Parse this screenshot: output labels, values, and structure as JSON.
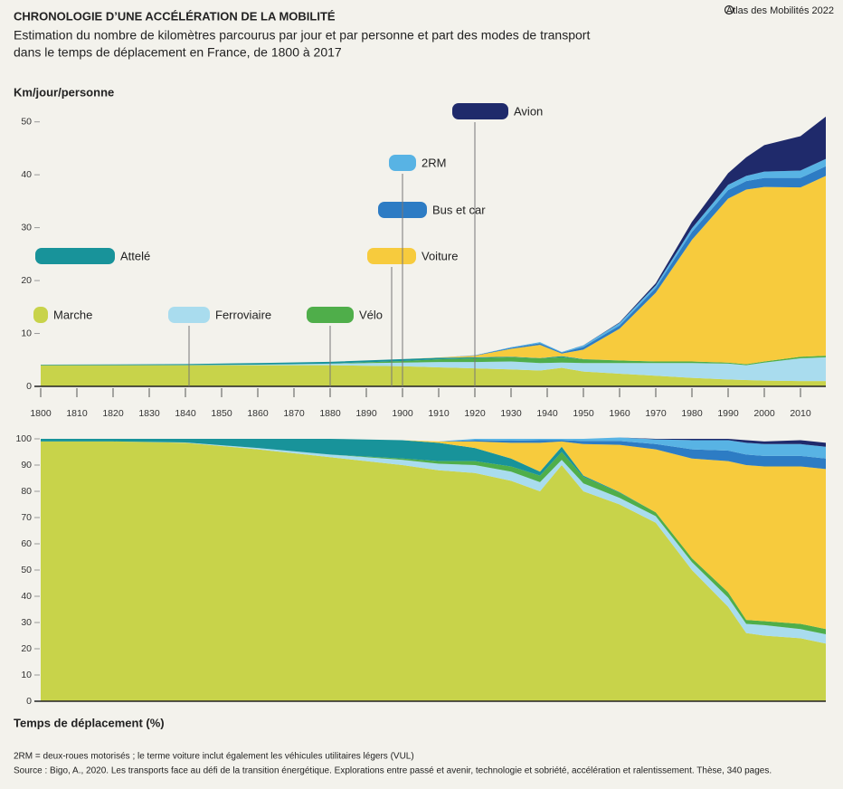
{
  "chart_data": [
    {
      "type": "stacked-area",
      "title": "CHRONOLOGIE D’UNE ACCÉLÉRATION DE LA MOBILITÉ",
      "subtitle": [
        "Estimation du nombre de kilomètres parcourus par jour et par personne et part des modes de transport",
        "dans le temps de déplacement en France, de 1800 à 2017"
      ],
      "credit": "Atlas des Mobilités 2022",
      "ylabel": "Km/jour/personne",
      "notes": [
        "2RM = deux-roues motorisés ; le terme voiture inclut également les véhicules utilitaires légers (VUL)",
        "Source : Bigo, A., 2020. Les transports face au défi de la transition énergétique. Explorations entre passé et avenir, technologie et sobriété, accélération et ralentissement. Thèse, 340 pages."
      ],
      "x": [
        1800,
        1820,
        1840,
        1860,
        1880,
        1900,
        1910,
        1920,
        1930,
        1938,
        1944,
        1950,
        1960,
        1970,
        1980,
        1990,
        1995,
        2000,
        2010,
        2017
      ],
      "xlim": [
        1800,
        2017
      ],
      "xticks": [
        1800,
        1810,
        1820,
        1830,
        1840,
        1850,
        1860,
        1870,
        1880,
        1890,
        1900,
        1910,
        1920,
        1930,
        1940,
        1950,
        1960,
        1970,
        1980,
        1990,
        2000,
        2010
      ],
      "ylim": [
        0,
        52
      ],
      "yticks": [
        0,
        10,
        20,
        30,
        40,
        50
      ],
      "series": [
        {
          "name": "Marche",
          "color": "#c8d34a",
          "values": [
            4,
            4,
            4,
            4,
            4,
            3.8,
            3.6,
            3.4,
            3.2,
            3,
            3.5,
            2.8,
            2.4,
            2,
            1.6,
            1.3,
            1.2,
            1.1,
            1,
            1
          ]
        },
        {
          "name": "Ferroviaire",
          "color": "#a9dcee",
          "values": [
            0,
            0,
            0.02,
            0.1,
            0.3,
            0.7,
            1,
            1.2,
            1.5,
            1.4,
            1,
            1.6,
            2,
            2.4,
            2.8,
            3,
            2.8,
            3.4,
            4.3,
            4.5
          ]
        },
        {
          "name": "Vélo",
          "color": "#4fae4a",
          "values": [
            0,
            0,
            0,
            0,
            0,
            0.3,
            0.5,
            0.7,
            0.8,
            0.9,
            1,
            0.7,
            0.5,
            0.3,
            0.3,
            0.2,
            0.2,
            0.2,
            0.3,
            0.3
          ]
        },
        {
          "name": "Attelé",
          "color": "#18939a",
          "values": [
            0.1,
            0.15,
            0.2,
            0.3,
            0.35,
            0.35,
            0.3,
            0.2,
            0.1,
            0.05,
            0.2,
            0.05,
            0,
            0,
            0,
            0,
            0,
            0,
            0,
            0
          ]
        },
        {
          "name": "Voiture",
          "color": "#f7cb3d",
          "values": [
            0,
            0,
            0,
            0,
            0,
            0,
            0.05,
            0.3,
            1.5,
            2.5,
            0.5,
            1.8,
            6,
            13,
            23,
            31,
            33,
            33,
            32,
            34
          ]
        },
        {
          "name": "Bus et car",
          "color": "#2d7cc4",
          "values": [
            0,
            0,
            0,
            0,
            0,
            0,
            0,
            0.05,
            0.2,
            0.3,
            0.2,
            0.5,
            0.6,
            0.9,
            1.5,
            1.6,
            1.6,
            1.7,
            1.8,
            1.8
          ]
        },
        {
          "name": "2RM",
          "color": "#58b3e4",
          "values": [
            0,
            0,
            0,
            0,
            0,
            0,
            0,
            0.02,
            0.1,
            0.2,
            0.1,
            0.3,
            0.5,
            0.5,
            0.7,
            1,
            1,
            1.2,
            1.4,
            1.4
          ]
        },
        {
          "name": "Avion",
          "color": "#1f2a6b",
          "values": [
            0,
            0,
            0,
            0,
            0,
            0,
            0,
            0,
            0,
            0,
            0,
            0.02,
            0.1,
            0.4,
            1.2,
            2.2,
            3.5,
            5,
            6.5,
            8
          ]
        }
      ],
      "annotations": [
        {
          "text": "Marche",
          "x": 1800
        },
        {
          "text": "Ferroviaire",
          "x": 1841
        },
        {
          "text": "Vélo",
          "x": 1880
        },
        {
          "text": "Attelé",
          "x": 1800
        },
        {
          "text": "Voiture",
          "x": 1897
        },
        {
          "text": "Bus et car",
          "x": 1900
        },
        {
          "text": "2RM",
          "x": 1900
        },
        {
          "text": "Avion",
          "x": 1920
        }
      ]
    },
    {
      "type": "stacked-area",
      "ylabel": "Temps de déplacement (%)",
      "x": [
        1800,
        1820,
        1840,
        1860,
        1880,
        1900,
        1910,
        1920,
        1930,
        1938,
        1944,
        1950,
        1960,
        1970,
        1980,
        1990,
        1995,
        2000,
        2010,
        2017
      ],
      "xlim": [
        1800,
        2017
      ],
      "ylim": [
        0,
        100
      ],
      "yticks": [
        0,
        10,
        20,
        30,
        40,
        50,
        60,
        70,
        80,
        90,
        100
      ],
      "series": [
        {
          "color": "#c8d34a",
          "values": [
            99,
            99,
            98.5,
            96,
            93,
            90,
            88,
            87,
            84,
            80,
            90,
            80,
            75,
            68,
            50,
            36,
            26,
            25,
            24,
            22
          ]
        },
        {
          "color": "#a9dcee",
          "values": [
            0,
            0,
            0.1,
            0.5,
            1,
            2,
            2.5,
            3,
            3.5,
            3.5,
            2,
            3,
            2.5,
            2.5,
            3,
            3.5,
            3.5,
            4,
            3.5,
            3.5
          ]
        },
        {
          "color": "#4fae4a",
          "values": [
            0,
            0,
            0,
            0,
            0,
            0.5,
            1,
            1.5,
            2,
            2.5,
            3,
            2.5,
            2,
            1.5,
            1.5,
            2,
            1.5,
            1.5,
            2,
            2
          ]
        },
        {
          "color": "#18939a",
          "values": [
            1,
            1,
            1.4,
            3.5,
            6,
            7,
            7,
            5,
            3,
            1.5,
            2,
            0.5,
            0.2,
            0,
            0,
            0,
            0,
            0,
            0,
            0
          ]
        },
        {
          "color": "#f7cb3d",
          "values": [
            0,
            0,
            0,
            0,
            0,
            0,
            0.5,
            2.5,
            6,
            11,
            2,
            12,
            18,
            24,
            38,
            50,
            59,
            59,
            60,
            61
          ]
        },
        {
          "color": "#2d7cc4",
          "values": [
            0,
            0,
            0,
            0,
            0,
            0,
            0,
            0.5,
            0.8,
            1,
            0.5,
            1.2,
            1.5,
            2,
            3.5,
            4,
            4,
            4,
            4,
            4
          ]
        },
        {
          "color": "#58b3e4",
          "values": [
            0,
            0,
            0,
            0,
            0,
            0,
            0,
            0.5,
            0.7,
            0.5,
            0.5,
            0.8,
            1.3,
            1.8,
            3.5,
            4,
            4.5,
            4.5,
            4.5,
            4.5
          ]
        },
        {
          "color": "#1f2a6b",
          "values": [
            0,
            0,
            0,
            0,
            0,
            0,
            0,
            0,
            0,
            0,
            0,
            0,
            0,
            0.2,
            0.5,
            0.5,
            1,
            1,
            1.5,
            1.5
          ]
        }
      ]
    }
  ]
}
